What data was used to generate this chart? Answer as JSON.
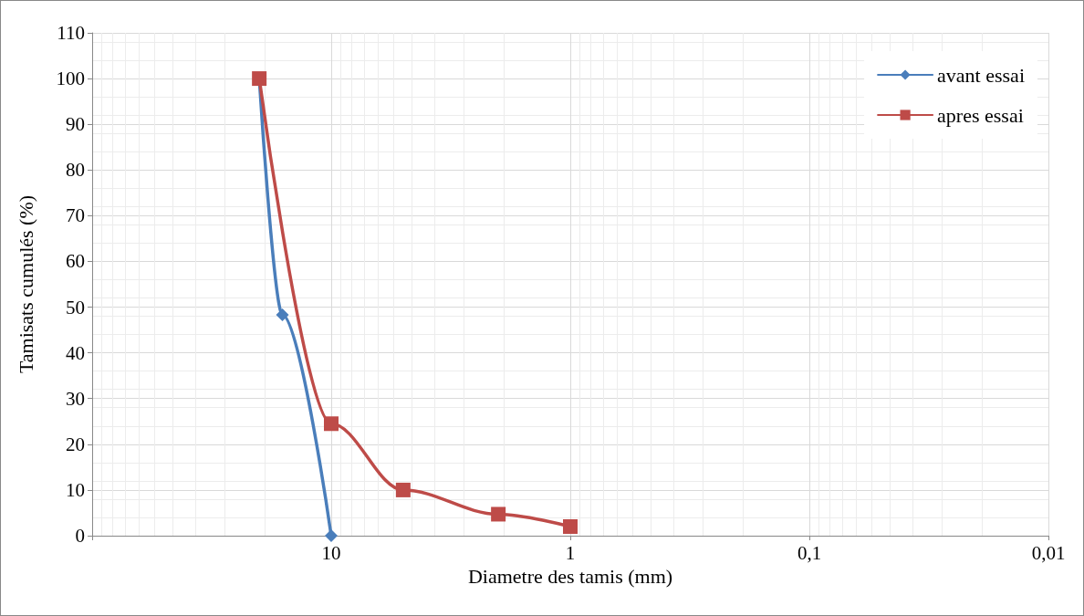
{
  "chart_data": {
    "type": "line",
    "xlabel": "Diametre des tamis (mm)",
    "ylabel": "Tamisats cumulés (%)",
    "log": "x",
    "xlim": [
      100,
      0.01
    ],
    "xticks": [
      {
        "value": 100,
        "label": null
      },
      10,
      1,
      {
        "value": 0.1,
        "label": "0,1"
      },
      {
        "value": 0.01,
        "label": "0,01"
      }
    ],
    "ylim": [
      0,
      110
    ],
    "yticks": [
      0,
      10,
      20,
      30,
      40,
      50,
      60,
      70,
      80,
      90,
      100,
      110
    ],
    "grid": true,
    "legend": "top right",
    "series": [
      {
        "name": "avant essai",
        "color": "#4a7ebb",
        "marker": "diamond",
        "x": [
          20,
          16,
          10
        ],
        "values": [
          100,
          48.3,
          0
        ]
      },
      {
        "name": "apres essai",
        "color": "#be4b48",
        "marker": "square",
        "x": [
          20,
          10,
          5,
          2,
          1
        ],
        "values": [
          100,
          24.5,
          10,
          4.7,
          2
        ]
      }
    ]
  }
}
